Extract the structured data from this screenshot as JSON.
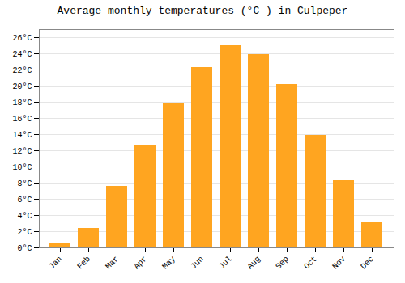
{
  "chart_data": {
    "type": "bar",
    "title": "Average monthly temperatures (°C ) in Culpeper",
    "categories": [
      "Jan",
      "Feb",
      "Mar",
      "Apr",
      "May",
      "Jun",
      "Jul",
      "Aug",
      "Sep",
      "Oct",
      "Nov",
      "Dec"
    ],
    "values": [
      0.5,
      2.4,
      7.6,
      12.7,
      17.9,
      22.3,
      25.0,
      23.9,
      20.2,
      13.9,
      8.4,
      3.1
    ],
    "color": "#FFA520",
    "ylim": [
      0,
      27
    ],
    "yticks": [
      {
        "value": 0,
        "label": "0°C"
      },
      {
        "value": 2,
        "label": "2°C"
      },
      {
        "value": 4,
        "label": "4°C"
      },
      {
        "value": 6,
        "label": "6°C"
      },
      {
        "value": 8,
        "label": "8°C"
      },
      {
        "value": 10,
        "label": "10°C"
      },
      {
        "value": 12,
        "label": "12°C"
      },
      {
        "value": 14,
        "label": "14°C"
      },
      {
        "value": 16,
        "label": "16°C"
      },
      {
        "value": 18,
        "label": "18°C"
      },
      {
        "value": 20,
        "label": "20°C"
      },
      {
        "value": 22,
        "label": "22°C"
      },
      {
        "value": 24,
        "label": "24°C"
      },
      {
        "value": 26,
        "label": "26°C"
      }
    ],
    "grid": true
  }
}
